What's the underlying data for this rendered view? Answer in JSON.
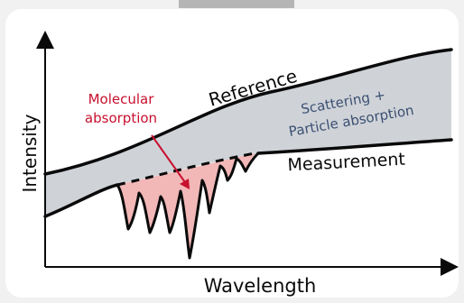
{
  "diagram": {
    "axis_x_label": "Wavelength",
    "axis_y_label": "Intensity",
    "curve_top_label": "Reference",
    "curve_bottom_label": "Measurement",
    "region_gray_label_line1": "Scattering +",
    "region_gray_label_line2": "Particle absorption",
    "region_red_label_line1": "Molecular",
    "region_red_label_line2": "absorption",
    "colors": {
      "page_background": "#f1f1f1",
      "card_background": "#ffffff",
      "gray_region": "#cfd3d8",
      "red_region": "#f2b7b7",
      "curve": "#0a0a0a",
      "red_text": "#c8102e",
      "blue_text": "#3b4f72",
      "top_tab": "#b5b5b5"
    }
  }
}
